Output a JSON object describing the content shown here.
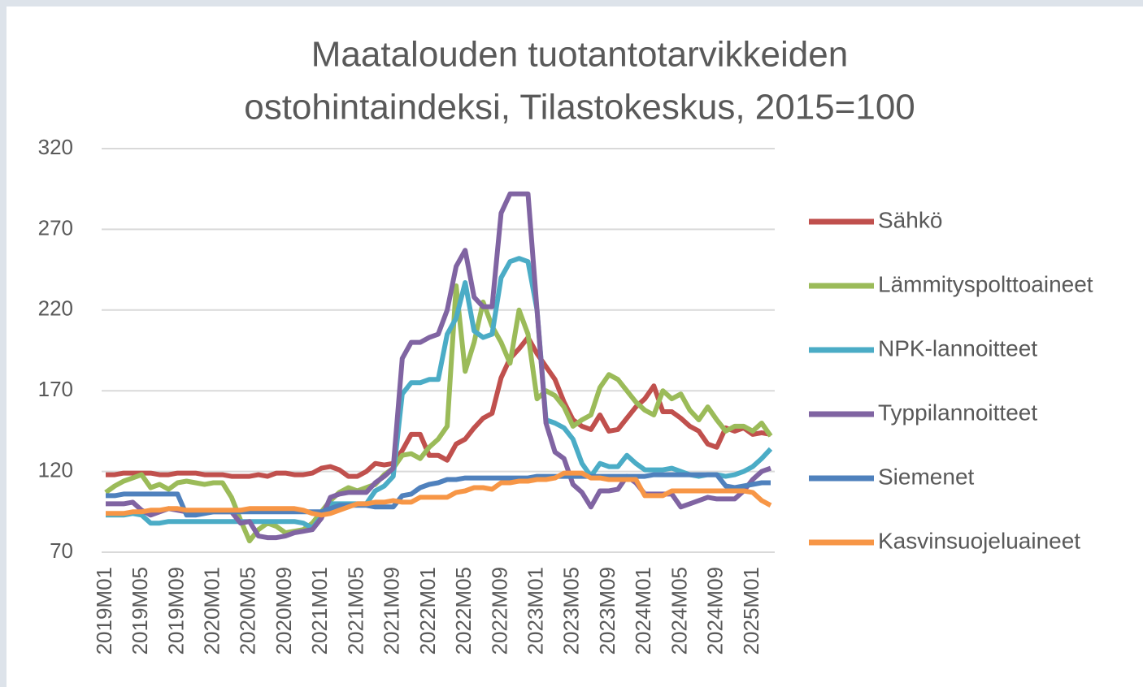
{
  "chart_data": {
    "type": "line",
    "title": [
      "Maatalouden tuotantotarvikkeiden",
      "ostohintaindeksi, Tilastokeskus, 2015=100"
    ],
    "categories": [
      "2019M01",
      null,
      null,
      null,
      "2019M05",
      null,
      null,
      null,
      "2019M09",
      null,
      null,
      null,
      "2020M01",
      null,
      null,
      null,
      "2020M05",
      null,
      null,
      null,
      "2020M09",
      null,
      null,
      null,
      "2021M01",
      null,
      null,
      null,
      "2021M05",
      null,
      null,
      null,
      "2021M09",
      null,
      null,
      null,
      "2022M01",
      null,
      null,
      null,
      "2022M05",
      null,
      null,
      null,
      "2022M09",
      null,
      null,
      null,
      "2023M01",
      null,
      null,
      null,
      "2023M05",
      null,
      null,
      null,
      "2023M09",
      null,
      null,
      null,
      "2024M01",
      null,
      null,
      null,
      "2024M05",
      null,
      null,
      null,
      "2024M09",
      null,
      null,
      null,
      "2025M01",
      null,
      null
    ],
    "ylim": [
      70,
      320
    ],
    "yticks": [
      70,
      120,
      170,
      220,
      270,
      320
    ],
    "grid": true,
    "legend": "right",
    "series": [
      {
        "name": "Sähkö",
        "color": "#c0504d",
        "values": [
          118,
          118,
          119,
          119,
          119,
          119,
          118,
          118,
          119,
          119,
          119,
          118,
          118,
          118,
          117,
          117,
          117,
          118,
          117,
          119,
          119,
          118,
          118,
          119,
          122,
          123,
          121,
          117,
          117,
          120,
          125,
          124,
          125,
          133,
          143,
          143,
          130,
          130,
          127,
          137,
          140,
          147,
          153,
          156,
          178,
          190,
          196,
          203,
          193,
          185,
          177,
          163,
          152,
          148,
          146,
          155,
          145,
          146,
          153,
          160,
          165,
          173,
          157,
          157,
          153,
          148,
          145,
          137,
          135,
          147,
          145,
          147,
          143,
          144,
          143
        ]
      },
      {
        "name": "Lämmityspolttoaineet",
        "color": "#9bbb59",
        "values": [
          107,
          111,
          114,
          116,
          118,
          110,
          112,
          109,
          113,
          114,
          113,
          112,
          113,
          113,
          104,
          90,
          77,
          84,
          88,
          86,
          82,
          83,
          84,
          88,
          95,
          102,
          107,
          110,
          108,
          110,
          112,
          118,
          122,
          130,
          131,
          128,
          135,
          140,
          148,
          235,
          182,
          200,
          225,
          210,
          200,
          187,
          220,
          205,
          165,
          170,
          167,
          160,
          148,
          152,
          155,
          172,
          180,
          177,
          170,
          163,
          158,
          155,
          170,
          165,
          168,
          158,
          152,
          160,
          152,
          145,
          148,
          148,
          145,
          150,
          142
        ]
      },
      {
        "name": "NPK-lannoitteet",
        "color": "#4bacc6",
        "values": [
          93,
          93,
          93,
          94,
          93,
          88,
          88,
          89,
          89,
          89,
          89,
          89,
          89,
          89,
          89,
          89,
          89,
          89,
          89,
          89,
          89,
          89,
          88,
          85,
          92,
          100,
          100,
          100,
          100,
          100,
          108,
          111,
          117,
          168,
          175,
          175,
          177,
          177,
          205,
          215,
          237,
          207,
          203,
          205,
          240,
          250,
          252,
          250,
          220,
          152,
          150,
          147,
          140,
          125,
          117,
          125,
          123,
          123,
          130,
          125,
          121,
          121,
          121,
          122,
          120,
          118,
          117,
          118,
          118,
          117,
          118,
          120,
          123,
          128,
          134
        ]
      },
      {
        "name": "Typpilannoitteet",
        "color": "#8064a2",
        "values": [
          100,
          100,
          100,
          101,
          96,
          93,
          95,
          97,
          96,
          95,
          95,
          95,
          95,
          95,
          95,
          88,
          89,
          80,
          79,
          79,
          80,
          82,
          83,
          84,
          91,
          104,
          106,
          107,
          107,
          107,
          113,
          117,
          122,
          190,
          200,
          200,
          203,
          205,
          220,
          247,
          257,
          228,
          222,
          222,
          280,
          292,
          292,
          292,
          220,
          150,
          132,
          128,
          112,
          107,
          98,
          108,
          108,
          109,
          117,
          113,
          106,
          106,
          106,
          106,
          98,
          100,
          102,
          104,
          103,
          103,
          103,
          108,
          115,
          120,
          122
        ]
      },
      {
        "name": "Siemenet",
        "color": "#4f81bd",
        "values": [
          105,
          105,
          106,
          106,
          106,
          106,
          106,
          106,
          106,
          93,
          93,
          94,
          95,
          95,
          95,
          95,
          95,
          95,
          95,
          95,
          95,
          95,
          95,
          95,
          95,
          97,
          99,
          99,
          99,
          99,
          98,
          98,
          98,
          105,
          106,
          110,
          112,
          113,
          115,
          115,
          116,
          116,
          116,
          116,
          116,
          116,
          116,
          116,
          117,
          117,
          117,
          117,
          117,
          117,
          117,
          117,
          117,
          117,
          117,
          117,
          117,
          118,
          118,
          118,
          118,
          118,
          118,
          118,
          118,
          111,
          110,
          111,
          112,
          113,
          113
        ]
      },
      {
        "name": "Kasvinsuojeluaineet",
        "color": "#f79646",
        "values": [
          94,
          94,
          94,
          95,
          95,
          96,
          96,
          97,
          97,
          96,
          96,
          96,
          96,
          96,
          96,
          96,
          97,
          97,
          97,
          97,
          97,
          97,
          96,
          94,
          93,
          94,
          96,
          98,
          100,
          100,
          101,
          101,
          102,
          101,
          101,
          104,
          104,
          104,
          104,
          107,
          108,
          110,
          110,
          109,
          113,
          113,
          114,
          114,
          115,
          115,
          116,
          119,
          119,
          119,
          116,
          116,
          115,
          115,
          115,
          115,
          105,
          105,
          105,
          108,
          108,
          108,
          108,
          108,
          108,
          108,
          108,
          108,
          107,
          102,
          99
        ]
      }
    ]
  }
}
